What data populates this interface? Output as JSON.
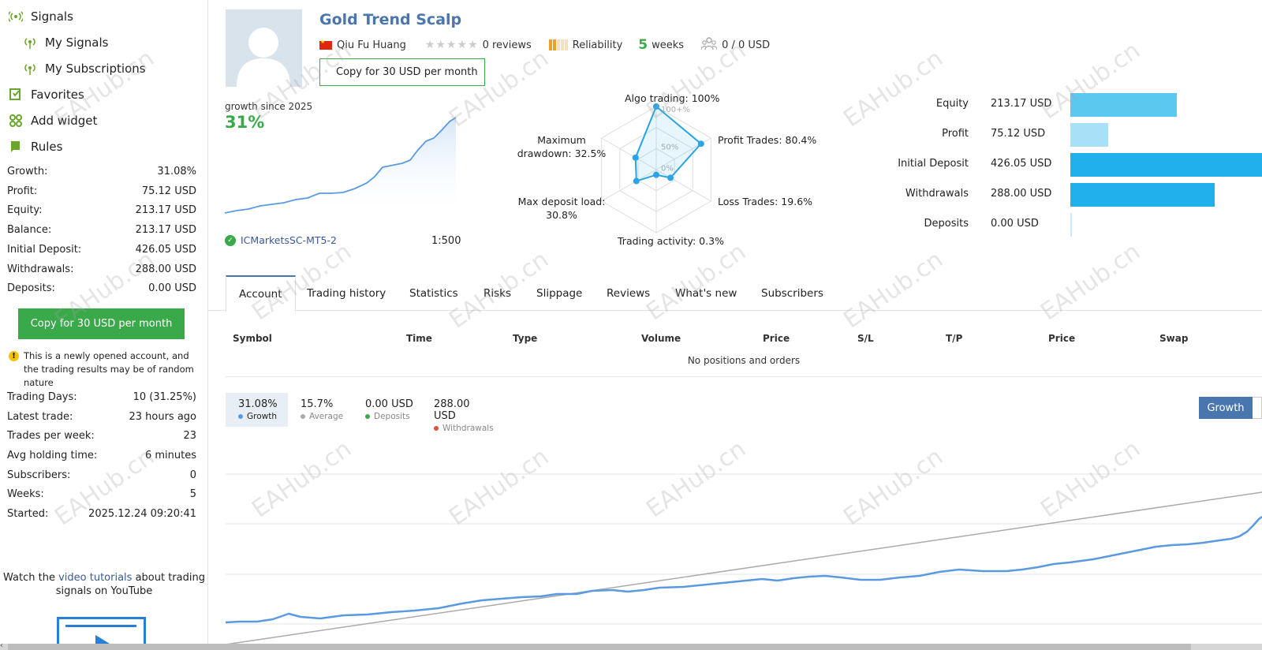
{
  "sidebar": {
    "nav": [
      {
        "label": "Signals",
        "icon": "signal-icon"
      },
      {
        "label": "My Signals",
        "icon": "signal-icon"
      },
      {
        "label": "My Subscriptions",
        "icon": "signal-icon"
      },
      {
        "label": "Favorites",
        "icon": "favorites-icon"
      },
      {
        "label": "Add widget",
        "icon": "widget-icon"
      },
      {
        "label": "Rules",
        "icon": "rules-icon"
      }
    ],
    "stats": [
      {
        "label": "Growth:",
        "value": "31.08%"
      },
      {
        "label": "Profit:",
        "value": "75.12 USD"
      },
      {
        "label": "Equity:",
        "value": "213.17 USD"
      },
      {
        "label": "Balance:",
        "value": "213.17 USD"
      },
      {
        "label": "Initial Deposit:",
        "value": "426.05 USD"
      },
      {
        "label": "Withdrawals:",
        "value": "288.00 USD"
      },
      {
        "label": "Deposits:",
        "value": "0.00 USD"
      }
    ],
    "copy_button": "Copy for 30 USD per month",
    "warning": "This is a newly opened account, and the trading results may be of random nature",
    "stats2": [
      {
        "label": "Trading Days:",
        "value": "10 (31.25%)"
      },
      {
        "label": "Latest trade:",
        "value": "23 hours ago"
      },
      {
        "label": "Trades per week:",
        "value": "23"
      },
      {
        "label": "Avg holding time:",
        "value": "6 minutes"
      },
      {
        "label": "Subscribers:",
        "value": "0"
      },
      {
        "label": "Weeks:",
        "value": "5"
      },
      {
        "label": "Started:",
        "value": "2025.12.24 09:20:41"
      }
    ],
    "tutorials": {
      "prefix": "Watch the ",
      "link": "video tutorials",
      "suffix": " about trading signals on YouTube"
    }
  },
  "header": {
    "title": "Gold Trend Scalp",
    "author": "Qiu Fu Huang",
    "stars": "★★★★★",
    "reviews": "0 reviews",
    "reliability": "Reliability",
    "weeks_num": "5",
    "weeks_label": "weeks",
    "subscribers": "0 / 0 USD",
    "copy_button": "Copy for 30 USD per month"
  },
  "summary": {
    "growth_since": "growth since 2025",
    "growth_pct": "31%",
    "broker": "ICMarketsSC-MT5-2",
    "leverage": "1:500"
  },
  "radar": {
    "algo": "Algo trading: 100%",
    "profit_trades": "Profit Trades: 80.4%",
    "loss_trades": "Loss Trades: 19.6%",
    "trading_activity": "Trading activity: 0.3%",
    "max_deposit_load": "Max deposit load: 30.8%",
    "max_drawdown": "Maximum drawdown: 32.5%",
    "ring_labels": [
      "100+%",
      "50%",
      "0%"
    ],
    "values": {
      "algo": 1.0,
      "profit": 0.804,
      "loss": 0.196,
      "activity": 0.003,
      "deposit_load": 0.308,
      "drawdown": 0.325
    }
  },
  "balance_bars": [
    {
      "label": "Equity",
      "value": "213.17 USD",
      "amount": 213.17,
      "color": "#5bc8f0"
    },
    {
      "label": "Profit",
      "value": "75.12 USD",
      "amount": 75.12,
      "color": "#a8e0f8"
    },
    {
      "label": "Initial Deposit",
      "value": "426.05 USD",
      "amount": 426.05,
      "color": "#22b0ec"
    },
    {
      "label": "Withdrawals",
      "value": "288.00 USD",
      "amount": 288.0,
      "color": "#22b0ec"
    },
    {
      "label": "Deposits",
      "value": "0.00 USD",
      "amount": 0.0,
      "color": "#22b0ec"
    }
  ],
  "tabs": [
    "Account",
    "Trading history",
    "Statistics",
    "Risks",
    "Slippage",
    "Reviews",
    "What's new",
    "Subscribers"
  ],
  "positions": {
    "columns": [
      "Symbol",
      "Time",
      "Type",
      "Volume",
      "Price",
      "S/L",
      "T/P",
      "Price",
      "Swap"
    ],
    "empty": "No positions and orders"
  },
  "growth_legend": [
    {
      "value": "31.08%",
      "label": "Growth",
      "color": "#5b9ae0"
    },
    {
      "value": "15.7%",
      "label": "Average",
      "color": "#aaaaaa"
    },
    {
      "value": "0.00 USD",
      "label": "Deposits",
      "color": "#3aa94a"
    },
    {
      "value": "288.00 USD",
      "label": "Withdrawals",
      "color": "#e05040"
    }
  ],
  "growth_button": "Growth",
  "watermark": "EAHub.cn"
}
